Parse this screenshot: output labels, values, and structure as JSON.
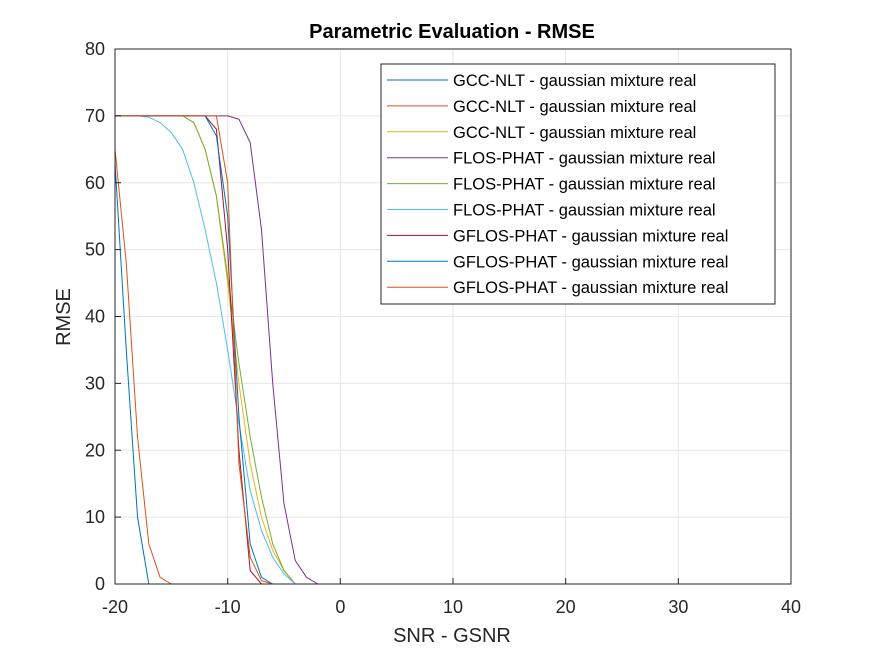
{
  "chart_data": {
    "type": "line",
    "title": "Parametric Evaluation - RMSE",
    "xlabel": "SNR - GSNR",
    "ylabel": "RMSE",
    "xlim": [
      -20,
      40
    ],
    "ylim": [
      0,
      80
    ],
    "xticks": [
      -20,
      -10,
      0,
      10,
      20,
      30,
      40
    ],
    "yticks": [
      0,
      10,
      20,
      30,
      40,
      50,
      60,
      70,
      80
    ],
    "xtick_labels": [
      "-20",
      "-10",
      "0",
      "10",
      "20",
      "30",
      "40"
    ],
    "ytick_labels": [
      "0",
      "10",
      "20",
      "30",
      "40",
      "50",
      "60",
      "70",
      "80"
    ],
    "grid": true,
    "legend_position": "top-right",
    "series": [
      {
        "name": "GCC-NLT - gaussian mixture real",
        "color": "#0072BD",
        "x": [
          -20,
          -19,
          -18,
          -17,
          -16,
          -15,
          -14,
          -13,
          -12,
          -11,
          -10,
          -9,
          -8,
          -7,
          -6,
          -5,
          -4,
          -3,
          -2,
          -1,
          0,
          10,
          20,
          30,
          40
        ],
        "y": [
          63,
          35,
          10,
          0,
          0,
          0,
          0,
          0,
          0,
          0,
          0,
          0,
          0,
          0,
          0,
          0,
          0,
          0,
          0,
          0,
          0,
          0,
          0,
          0,
          0
        ]
      },
      {
        "name": "GCC-NLT - gaussian mixture real",
        "color": "#D95319",
        "x": [
          -20,
          -19,
          -18,
          -17,
          -16,
          -15,
          -14,
          -13,
          -12,
          -11,
          -10,
          -9,
          -8,
          -7,
          -6,
          -5,
          -4,
          -3,
          -2,
          -1,
          0,
          10,
          20,
          30,
          40
        ],
        "y": [
          65,
          48,
          22,
          6,
          1,
          0,
          0,
          0,
          0,
          0,
          0,
          0,
          0,
          0,
          0,
          0,
          0,
          0,
          0,
          0,
          0,
          0,
          0,
          0,
          0
        ]
      },
      {
        "name": "GCC-NLT - gaussian mixture real",
        "color": "#EDB120",
        "x": [
          -20,
          -19,
          -18,
          -17,
          -16,
          -15,
          -14,
          -13,
          -12,
          -11,
          -10,
          -9,
          -8,
          -7,
          -6,
          -5,
          -4,
          -3,
          -2,
          -1,
          0,
          10,
          20,
          30,
          40
        ],
        "y": [
          70,
          70,
          70,
          70,
          70,
          70,
          70,
          69,
          65,
          58,
          45,
          30,
          18,
          10,
          5,
          2,
          0,
          0,
          0,
          0,
          0,
          0,
          0,
          0,
          0
        ]
      },
      {
        "name": "FLOS-PHAT - gaussian mixture real",
        "color": "#7E2F8E",
        "x": [
          -20,
          -19,
          -18,
          -17,
          -16,
          -15,
          -14,
          -13,
          -12,
          -11,
          -10,
          -9,
          -8,
          -7,
          -6,
          -5,
          -4,
          -3,
          -2,
          -1,
          0,
          10,
          20,
          30,
          40
        ],
        "y": [
          70,
          70,
          70,
          70,
          70,
          70,
          70,
          70,
          70,
          70,
          70,
          69.5,
          66,
          53,
          30,
          12,
          3.5,
          1,
          0,
          0,
          0,
          0,
          0,
          0,
          0
        ]
      },
      {
        "name": "FLOS-PHAT - gaussian mixture real",
        "color": "#77AC30",
        "x": [
          -20,
          -19,
          -18,
          -17,
          -16,
          -15,
          -14,
          -13,
          -12,
          -11,
          -10,
          -9,
          -8,
          -7,
          -6,
          -5,
          -4,
          -3,
          -2,
          -1,
          0,
          10,
          20,
          30,
          40
        ],
        "y": [
          70,
          70,
          70,
          70,
          70,
          70,
          70,
          69,
          65,
          58,
          46,
          33,
          22,
          13,
          6,
          2,
          0,
          0,
          0,
          0,
          0,
          0,
          0,
          0,
          0
        ]
      },
      {
        "name": "FLOS-PHAT - gaussian mixture real",
        "color": "#4DBEEE",
        "x": [
          -20,
          -19,
          -18,
          -17,
          -16,
          -15,
          -14,
          -13,
          -12,
          -11,
          -10,
          -9,
          -8,
          -7,
          -6,
          -5,
          -4,
          -3,
          -2,
          -1,
          0,
          10,
          20,
          30,
          40
        ],
        "y": [
          70,
          70,
          70,
          69.8,
          69,
          67.5,
          65,
          60,
          53,
          45,
          35,
          24,
          14,
          8,
          4,
          1.5,
          0,
          0,
          0,
          0,
          0,
          0,
          0,
          0,
          0
        ]
      },
      {
        "name": "GFLOS-PHAT - gaussian mixture real",
        "color": "#A2142F",
        "x": [
          -20,
          -19,
          -18,
          -17,
          -16,
          -15,
          -14,
          -13,
          -12,
          -11,
          -10,
          -9,
          -8,
          -7,
          -6,
          -5,
          -4,
          -3,
          -2,
          -1,
          0,
          10,
          20,
          30,
          40
        ],
        "y": [
          70,
          70,
          70,
          70,
          70,
          70,
          70,
          70,
          70,
          68,
          50,
          20,
          2,
          0,
          0,
          0,
          0,
          0,
          0,
          0,
          0,
          0,
          0,
          0,
          0
        ]
      },
      {
        "name": "GFLOS-PHAT - gaussian mixture real",
        "color": "#0072BD",
        "x": [
          -20,
          -19,
          -18,
          -17,
          -16,
          -15,
          -14,
          -13,
          -12,
          -11,
          -10,
          -9,
          -8,
          -7,
          -6,
          -5,
          -4,
          -3,
          -2,
          -1,
          0,
          10,
          20,
          30,
          40
        ],
        "y": [
          70,
          70,
          70,
          70,
          70,
          70,
          70,
          70,
          70,
          67,
          55,
          25,
          6,
          1,
          0,
          0,
          0,
          0,
          0,
          0,
          0,
          0,
          0,
          0,
          0
        ]
      },
      {
        "name": "GFLOS-PHAT - gaussian mixture real",
        "color": "#D95319",
        "x": [
          -20,
          -19,
          -18,
          -17,
          -16,
          -15,
          -14,
          -13,
          -12,
          -11,
          -10,
          -9,
          -8,
          -7,
          -6,
          -5,
          -4,
          -3,
          -2,
          -1,
          0,
          10,
          20,
          30,
          40
        ],
        "y": [
          70,
          70,
          70,
          70,
          70,
          70,
          70,
          70,
          70,
          70,
          60,
          18,
          4,
          0.5,
          0,
          0,
          0,
          0,
          0,
          0,
          0,
          0,
          0,
          0,
          0
        ]
      }
    ]
  }
}
